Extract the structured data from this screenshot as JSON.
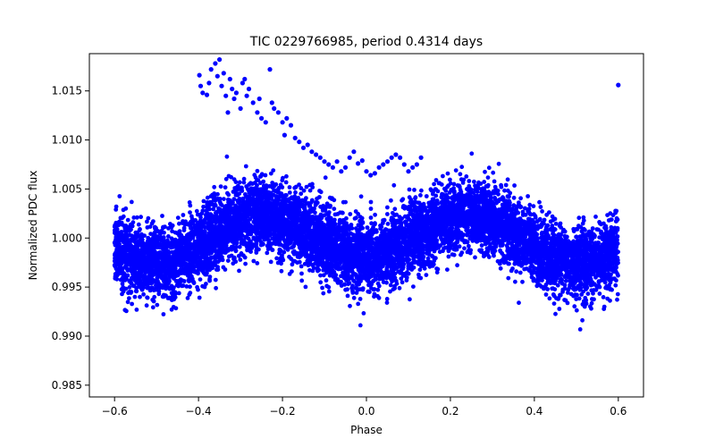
{
  "chart_data": {
    "type": "scatter",
    "title": "TIC 0229766985, period 0.4314 days",
    "xlabel": "Phase",
    "ylabel": "Normalized PDC flux",
    "xlim": [
      -0.66,
      0.66
    ],
    "ylim": [
      0.9838,
      1.0188
    ],
    "xticks": [
      -0.6,
      -0.4,
      -0.2,
      0.0,
      0.2,
      0.4,
      0.6
    ],
    "xtick_labels": [
      "−0.6",
      "−0.4",
      "−0.2",
      "0.0",
      "0.2",
      "0.4",
      "0.6"
    ],
    "yticks": [
      0.985,
      0.99,
      0.995,
      1.0,
      1.005,
      1.01,
      1.015
    ],
    "ytick_labels": [
      "0.985",
      "0.990",
      "0.995",
      "1.000",
      "1.005",
      "1.010",
      "1.015"
    ],
    "grid": false,
    "marker_color": "#0000ff",
    "phase_range": [
      -0.6,
      0.6
    ],
    "light_curve": {
      "description": "Dense phase-folded band: sinusoidal modulation with maxima near phase ±0.25 and minima near 0.0 and ±0.5",
      "baseline": 1.0,
      "primary_amplitude": 0.0023,
      "secondary_amplitude": 0.0003,
      "scatter_sigma": 0.0018,
      "points": 9000
    },
    "outliers": {
      "x": [
        -0.398,
        -0.395,
        -0.39,
        -0.38,
        -0.375,
        -0.37,
        -0.36,
        -0.355,
        -0.35,
        -0.345,
        -0.34,
        -0.335,
        -0.33,
        -0.325,
        -0.32,
        -0.315,
        -0.31,
        -0.3,
        -0.295,
        -0.29,
        -0.285,
        -0.28,
        -0.27,
        -0.26,
        -0.255,
        -0.25,
        -0.24,
        -0.23,
        -0.225,
        -0.22,
        -0.21,
        -0.2,
        -0.195,
        -0.19,
        -0.18,
        -0.17,
        -0.16,
        -0.15,
        -0.14,
        -0.13,
        -0.12,
        -0.11,
        -0.1,
        -0.09,
        -0.08,
        -0.07,
        -0.06,
        -0.05,
        -0.04,
        -0.03,
        -0.02,
        -0.01,
        0.0,
        0.01,
        0.02,
        0.03,
        0.04,
        0.05,
        0.06,
        0.07,
        0.08,
        0.09,
        0.1,
        0.11,
        0.12,
        0.13,
        0.6
      ],
      "y": [
        1.0166,
        1.0155,
        1.0148,
        1.0146,
        1.0158,
        1.0172,
        1.0178,
        1.0165,
        1.0182,
        1.0155,
        1.0168,
        1.0145,
        1.0128,
        1.0162,
        1.0152,
        1.0142,
        1.0148,
        1.0132,
        1.0158,
        1.0162,
        1.0145,
        1.0152,
        1.0138,
        1.0128,
        1.0142,
        1.0122,
        1.0118,
        1.0172,
        1.0138,
        1.0132,
        1.0128,
        1.0118,
        1.0105,
        1.0122,
        1.0115,
        1.0102,
        1.0098,
        1.0092,
        1.0095,
        1.0088,
        1.0085,
        1.0082,
        1.0078,
        1.0075,
        1.0072,
        1.0078,
        1.0068,
        1.0072,
        1.0082,
        1.0088,
        1.0076,
        1.0079,
        1.0068,
        1.0064,
        1.0066,
        1.0072,
        1.0075,
        1.0078,
        1.0082,
        1.0085,
        1.0082,
        1.0075,
        1.0068,
        1.0072,
        1.0075,
        1.0082,
        1.0156
      ]
    }
  }
}
